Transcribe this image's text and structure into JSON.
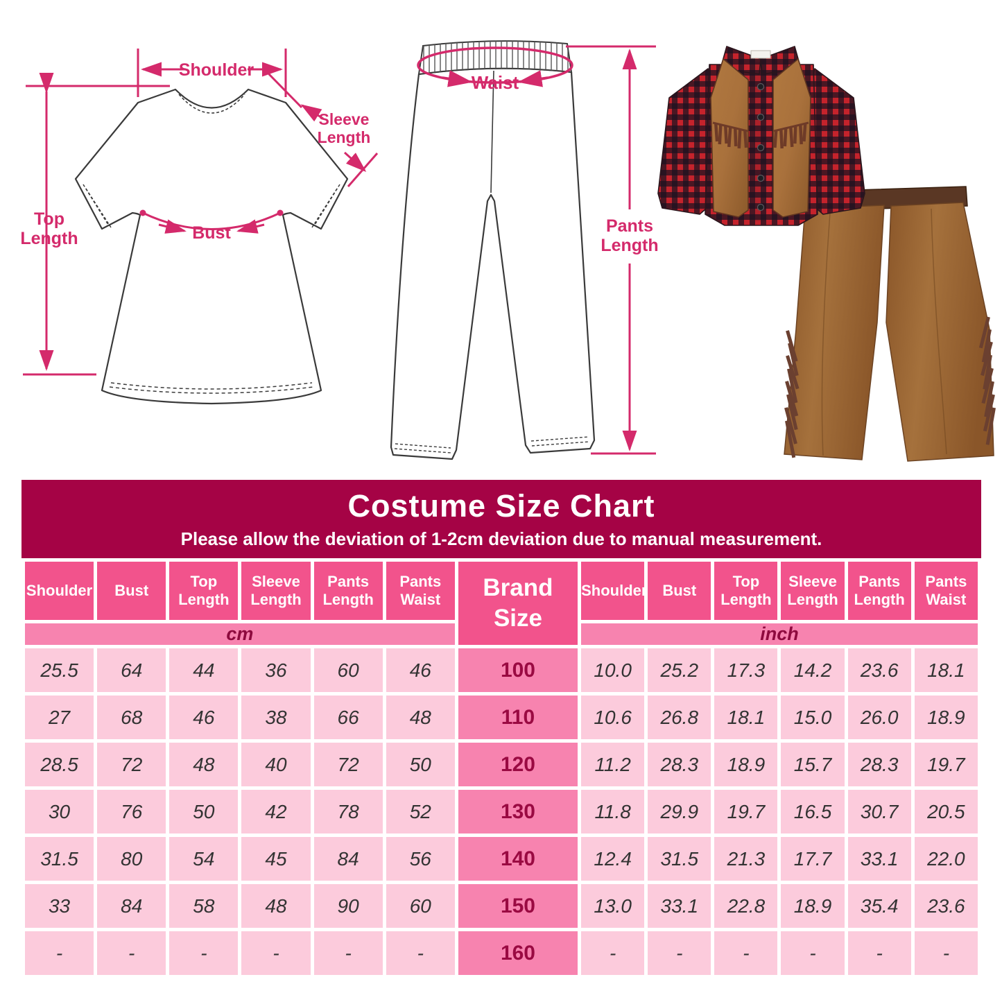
{
  "palette": {
    "title_band": "#A50345",
    "header_pink": "#F2538C",
    "mid_pink": "#F783AF",
    "cell_pink": "#FCCBDC",
    "annotation_pink": "#D42A6B",
    "brand_text": "#9A0A42",
    "plaid_red": "#C5232C",
    "plaid_dark": "#1B1220",
    "vest_brown": "#A9713C",
    "chaps_brown": "#936030",
    "fringe_brown": "#6B4030"
  },
  "annotations": {
    "shirt": {
      "shoulder": "Shoulder",
      "sleeve_length_lines": [
        "Sleeve",
        "Length"
      ],
      "top_length_lines": [
        "Top",
        "Length"
      ],
      "bust": "Bust"
    },
    "pants": {
      "waist": "Waist",
      "pants_length_lines": [
        "Pants",
        "Length"
      ]
    }
  },
  "chart_data": {
    "type": "table",
    "title": "Costume Size Chart",
    "subtitle": "Please allow the deviation of 1-2cm deviation due to manual measurement.",
    "brand_column_header": "Brand Size",
    "measurement_columns": [
      "Shoulder",
      "Bust",
      "Top Length",
      "Sleeve Length",
      "Pants Length",
      "Pants Waist"
    ],
    "unit_groups": [
      "cm",
      "inch"
    ],
    "brand_sizes": [
      "100",
      "110",
      "120",
      "130",
      "140",
      "150",
      "160"
    ],
    "rows": [
      {
        "brand_size": "100",
        "cm": [
          "25.5",
          "64",
          "44",
          "36",
          "60",
          "46"
        ],
        "inch": [
          "10.0",
          "25.2",
          "17.3",
          "14.2",
          "23.6",
          "18.1"
        ]
      },
      {
        "brand_size": "110",
        "cm": [
          "27",
          "68",
          "46",
          "38",
          "66",
          "48"
        ],
        "inch": [
          "10.6",
          "26.8",
          "18.1",
          "15.0",
          "26.0",
          "18.9"
        ]
      },
      {
        "brand_size": "120",
        "cm": [
          "28.5",
          "72",
          "48",
          "40",
          "72",
          "50"
        ],
        "inch": [
          "11.2",
          "28.3",
          "18.9",
          "15.7",
          "28.3",
          "19.7"
        ]
      },
      {
        "brand_size": "130",
        "cm": [
          "30",
          "76",
          "50",
          "42",
          "78",
          "52"
        ],
        "inch": [
          "11.8",
          "29.9",
          "19.7",
          "16.5",
          "30.7",
          "20.5"
        ]
      },
      {
        "brand_size": "140",
        "cm": [
          "31.5",
          "80",
          "54",
          "45",
          "84",
          "56"
        ],
        "inch": [
          "12.4",
          "31.5",
          "21.3",
          "17.7",
          "33.1",
          "22.0"
        ]
      },
      {
        "brand_size": "150",
        "cm": [
          "33",
          "84",
          "58",
          "48",
          "90",
          "60"
        ],
        "inch": [
          "13.0",
          "33.1",
          "22.8",
          "18.9",
          "35.4",
          "23.6"
        ]
      },
      {
        "brand_size": "160",
        "cm": [
          "-",
          "-",
          "-",
          "-",
          "-",
          "-"
        ],
        "inch": [
          "-",
          "-",
          "-",
          "-",
          "-",
          "-"
        ]
      }
    ]
  }
}
